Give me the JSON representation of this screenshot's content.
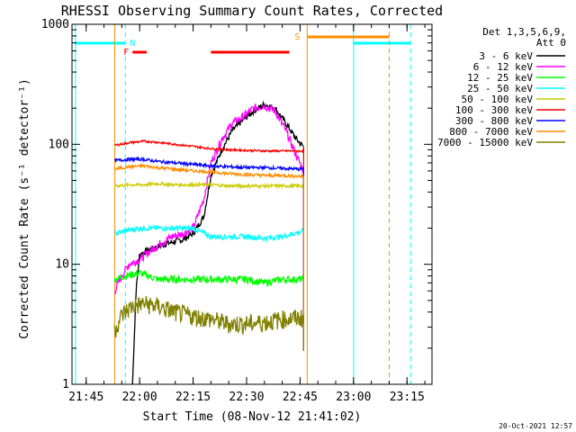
{
  "chart_data": {
    "type": "line",
    "title": "RHESSI Observing Summary Count Rates, Corrected",
    "xlabel": "Start Time (08-Nov-12 21:41:02)",
    "ylabel": "Corrected Count Rate (s⁻¹ detector⁻¹)",
    "x_ticks": [
      "21:45",
      "22:00",
      "22:15",
      "22:30",
      "22:45",
      "23:00",
      "23:15"
    ],
    "y_ticks": [
      "1",
      "10",
      "100",
      "1000"
    ],
    "y_scale": "log",
    "ylim": [
      1,
      1000
    ],
    "xlim": [
      "21:41:02",
      "23:22:00"
    ],
    "legend_header": [
      "Det 1,3,5,6,9,",
      "Att 0"
    ],
    "footer": "20-Oct-2021 12:57",
    "colors": {
      "axis": "#000000",
      "night": "#00ffff",
      "saa": "#ff8c00",
      "flare": "#ff0000"
    },
    "series": [
      {
        "name": "3 - 6 keV",
        "color": "#000000",
        "x": [
          "21:58",
          "21:59",
          "22:00",
          "22:02",
          "22:05",
          "22:08",
          "22:12",
          "22:15",
          "22:18",
          "22:20",
          "22:23",
          "22:26",
          "22:29",
          "22:32",
          "22:35",
          "22:38",
          "22:41",
          "22:44",
          "22:46"
        ],
        "y": [
          1,
          6,
          12,
          13,
          14,
          15,
          16,
          18,
          25,
          55,
          90,
          130,
          160,
          190,
          215,
          200,
          150,
          110,
          95
        ]
      },
      {
        "name": "6 - 12 keV",
        "color": "#ff00ff",
        "x": [
          "21:53",
          "21:55",
          "21:57",
          "22:00",
          "22:03",
          "22:06",
          "22:09",
          "22:12",
          "22:15",
          "22:18",
          "22:20",
          "22:23",
          "22:26",
          "22:29",
          "22:32",
          "22:35",
          "22:38",
          "22:41",
          "22:44",
          "22:46"
        ],
        "y": [
          6,
          8,
          10,
          11,
          13,
          15,
          17,
          18,
          20,
          35,
          70,
          110,
          150,
          170,
          200,
          210,
          190,
          130,
          80,
          60
        ]
      },
      {
        "name": "12 - 25 keV",
        "color": "#00ff00",
        "x": [
          "21:53",
          "21:56",
          "22:00",
          "22:05",
          "22:10",
          "22:15",
          "22:20",
          "22:25",
          "22:30",
          "22:35",
          "22:40",
          "22:46"
        ],
        "y": [
          7.5,
          8,
          8.5,
          7.5,
          7.5,
          7.5,
          7.5,
          7.5,
          7.5,
          7,
          7.5,
          7.5
        ]
      },
      {
        "name": "25 - 50 keV",
        "color": "#00ffff",
        "x": [
          "21:53",
          "21:56",
          "22:00",
          "22:05",
          "22:10",
          "22:15",
          "22:20",
          "22:25",
          "22:30",
          "22:35",
          "22:40",
          "22:46"
        ],
        "y": [
          18,
          19,
          20,
          20,
          20,
          20,
          17,
          17,
          17,
          16.5,
          17,
          19
        ]
      },
      {
        "name": "50 - 100 keV",
        "color": "#cccc00",
        "x": [
          "21:53",
          "21:57",
          "22:01",
          "22:05",
          "22:10",
          "22:15",
          "22:20",
          "22:25",
          "22:30",
          "22:35",
          "22:40",
          "22:46"
        ],
        "y": [
          45,
          46,
          46,
          47,
          46,
          46,
          46,
          45,
          45,
          45,
          45,
          45
        ]
      },
      {
        "name": "100 - 300 keV",
        "color": "#ff0000",
        "x": [
          "21:53",
          "21:57",
          "22:01",
          "22:05",
          "22:10",
          "22:15",
          "22:20",
          "22:25",
          "22:30",
          "22:35",
          "22:40",
          "22:46"
        ],
        "y": [
          98,
          103,
          106,
          104,
          100,
          96,
          92,
          90,
          89,
          88,
          88,
          88
        ]
      },
      {
        "name": "300 - 800 keV",
        "color": "#0000ff",
        "x": [
          "21:53",
          "21:57",
          "22:01",
          "22:05",
          "22:10",
          "22:15",
          "22:20",
          "22:25",
          "22:30",
          "22:35",
          "22:40",
          "22:46"
        ],
        "y": [
          73,
          75,
          75,
          72,
          70,
          68,
          66,
          65,
          64,
          64,
          63,
          62
        ]
      },
      {
        "name": "800 - 7000 keV",
        "color": "#ff8c00",
        "x": [
          "21:53",
          "21:57",
          "22:01",
          "22:05",
          "22:10",
          "22:15",
          "22:20",
          "22:25",
          "22:30",
          "22:35",
          "22:40",
          "22:46"
        ],
        "y": [
          62,
          65,
          66,
          64,
          62,
          60,
          59,
          57,
          56,
          55,
          55,
          54
        ]
      },
      {
        "name": "7000 - 15000 keV",
        "color": "#808000",
        "x": [
          "21:53",
          "21:55",
          "21:58",
          "22:01",
          "22:05",
          "22:10",
          "22:15",
          "22:20",
          "22:25",
          "22:30",
          "22:35",
          "22:40",
          "22:46"
        ],
        "y": [
          2.8,
          3.8,
          4.5,
          4.7,
          4.5,
          4,
          3.7,
          3.5,
          3.2,
          3.2,
          3.3,
          3.5,
          3.6
        ]
      }
    ],
    "night_markers": {
      "label": "N",
      "solid": [
        "21:42",
        "23:00"
      ],
      "dashed": [
        "21:56",
        "23:16"
      ],
      "bars": [
        [
          "21:42",
          "21:56"
        ],
        [
          "23:00",
          "23:16"
        ]
      ]
    },
    "saa_markers": {
      "label": "S",
      "solid": [
        "21:53",
        "22:47"
      ],
      "dashed": [
        "23:10"
      ],
      "bars": [
        [
          "22:47",
          "23:10"
        ]
      ]
    },
    "flare_markers": {
      "label": "F",
      "bars": [
        [
          "21:58",
          "22:02"
        ],
        [
          "22:20",
          "22:42"
        ]
      ]
    }
  }
}
